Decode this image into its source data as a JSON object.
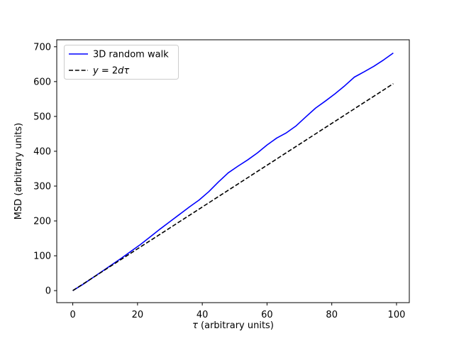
{
  "figure": {
    "background": "#ffffff"
  },
  "chart_data": {
    "type": "line",
    "title": "",
    "xlabel": "τ (arbitrary units)",
    "xlabel_parts": [
      {
        "t": "τ",
        "i": true
      },
      {
        "t": " (arbitrary units)",
        "i": false
      }
    ],
    "ylabel": "MSD (arbitrary units)",
    "xlim": [
      -4.95,
      103.95
    ],
    "ylim": [
      -34.5,
      720
    ],
    "xticks": [
      0,
      20,
      40,
      60,
      80,
      100
    ],
    "yticks": [
      0,
      100,
      200,
      300,
      400,
      500,
      600,
      700
    ],
    "grid": false,
    "axis_color": "#000000",
    "legend": {
      "position": "upper left",
      "frame_color": "#cccccc",
      "frame_fill": "#ffffff",
      "entries": [
        {
          "label": "3D random walk",
          "label_parts": [
            {
              "t": "3D random walk",
              "i": false
            }
          ],
          "color": "#0000ff",
          "style": "solid"
        },
        {
          "label": "y = 2dτ",
          "label_parts": [
            {
              "t": "y",
              "i": true
            },
            {
              "t": " = 2",
              "i": false
            },
            {
              "t": "dτ",
              "i": true
            }
          ],
          "color": "#000000",
          "style": "dashed"
        }
      ]
    },
    "series": [
      {
        "name": "3D random walk",
        "color": "#0000ff",
        "style": "solid",
        "linewidth": 1.6,
        "x": [
          0,
          3,
          6,
          9,
          12,
          15,
          18,
          21,
          24,
          27,
          30,
          33,
          36,
          39,
          42,
          45,
          48,
          51,
          54,
          57,
          60,
          63,
          66,
          69,
          72,
          75,
          78,
          81,
          84,
          87,
          90,
          93,
          96,
          99
        ],
        "y": [
          0,
          17,
          36,
          55,
          74,
          93,
          113,
          133,
          155,
          177,
          198,
          219,
          240,
          260,
          284,
          312,
          338,
          357,
          375,
          395,
          418,
          438,
          453,
          473,
          499,
          524,
          544,
          565,
          588,
          613,
          628,
          644,
          662,
          682
        ]
      },
      {
        "name": "y = 2dτ",
        "color": "#000000",
        "style": "dashed",
        "linewidth": 1.6,
        "x": [
          0,
          99
        ],
        "y": [
          0,
          594
        ]
      }
    ]
  }
}
